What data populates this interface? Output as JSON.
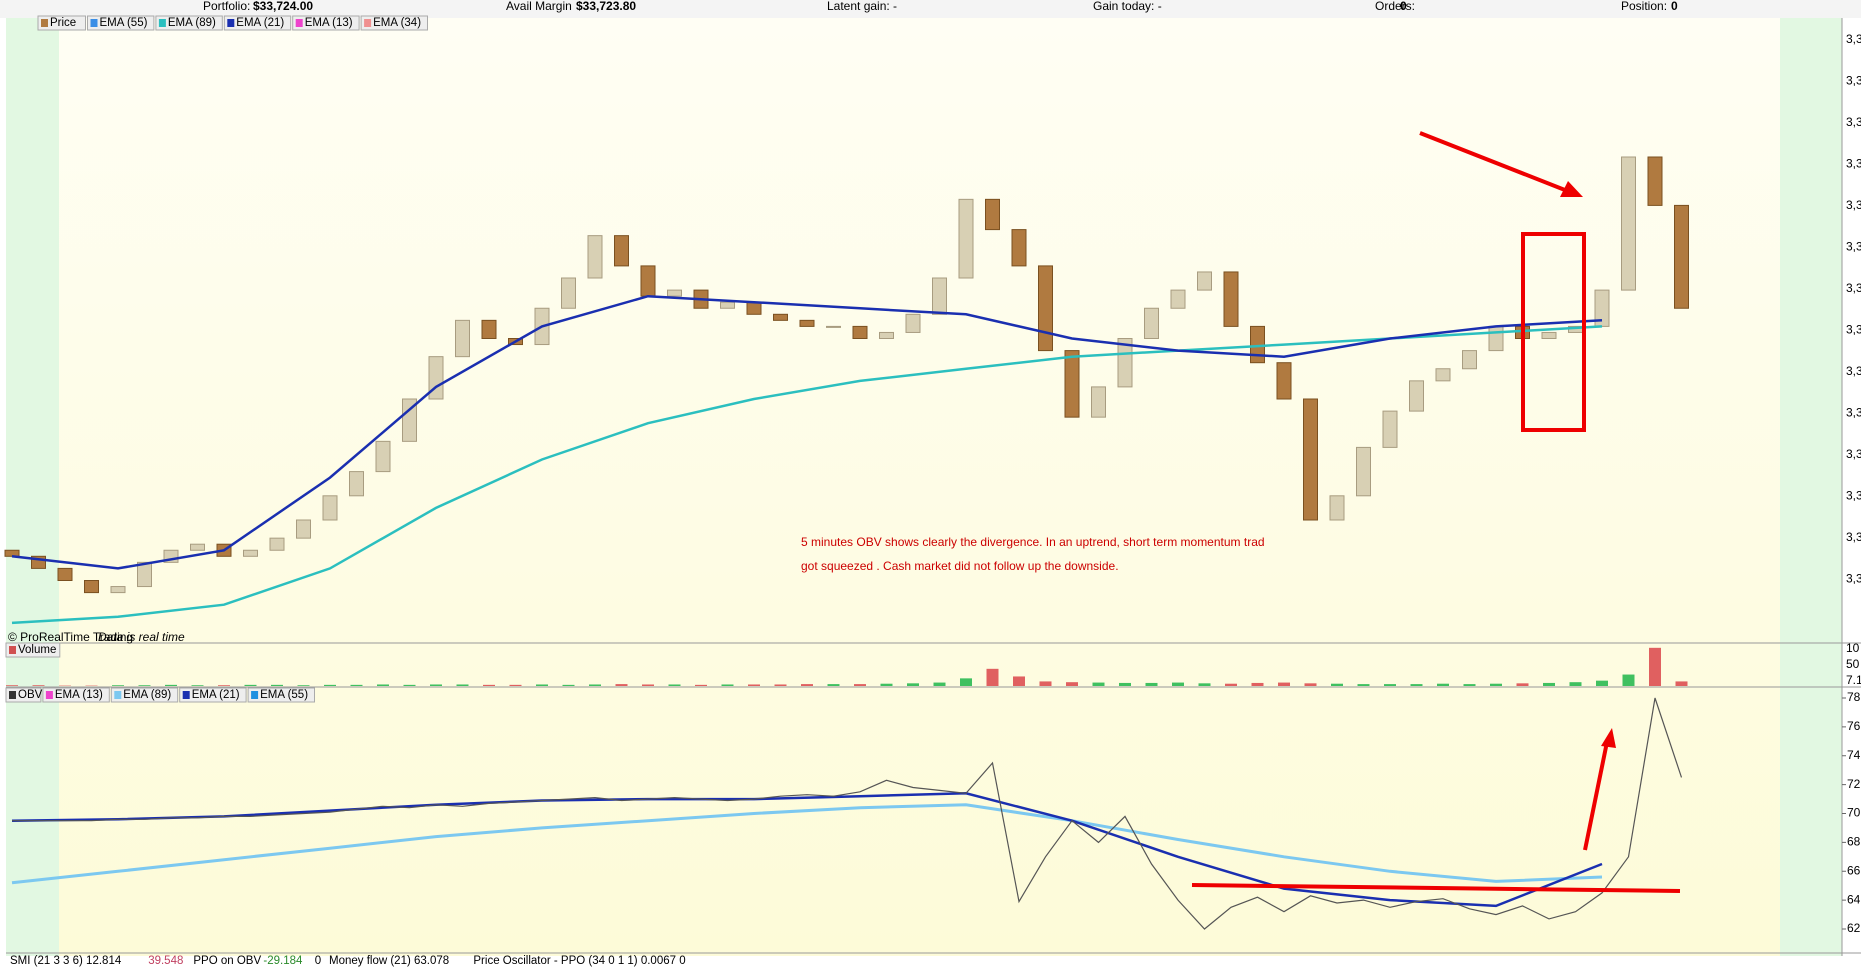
{
  "top_bar": {
    "portfolio": "Portfolio:",
    "portfolio_value": "$33,724.00",
    "avail_margin": "Avail Margin",
    "avail_margin_value": "$33,723.80",
    "latent_gain": "Latent gain: -",
    "gain_today": "Gain today: -",
    "orders": "Orders:",
    "orders_value": "0",
    "position": "Position:",
    "position_value": "0"
  },
  "price_chart": {
    "type": "candlestick",
    "legend": [
      "Price",
      "EMA (55)",
      "EMA (89)",
      "EMA (21)",
      "EMA (13)",
      "EMA (34)"
    ],
    "opens": [
      15,
      14,
      12,
      10,
      8,
      9,
      13,
      15,
      16,
      14,
      15,
      17,
      20,
      24,
      28,
      33,
      40,
      47,
      53,
      50,
      49,
      55,
      60,
      67,
      62,
      57,
      58,
      55,
      56,
      54,
      53,
      52,
      52,
      50,
      51,
      54,
      60,
      73,
      68,
      62,
      48,
      37,
      42,
      50,
      55,
      58,
      61,
      52,
      46,
      40,
      20,
      24,
      32,
      38,
      43,
      45,
      48,
      52,
      50,
      51,
      52,
      58,
      80,
      72
    ],
    "closes": [
      14,
      12,
      10,
      8,
      9,
      13,
      15,
      16,
      14,
      15,
      17,
      20,
      24,
      28,
      33,
      40,
      47,
      53,
      50,
      49,
      55,
      60,
      67,
      62,
      57,
      58,
      55,
      56,
      54,
      53,
      52,
      52,
      50,
      51,
      54,
      60,
      73,
      68,
      62,
      48,
      37,
      42,
      50,
      55,
      58,
      61,
      52,
      46,
      40,
      20,
      24,
      32,
      38,
      43,
      45,
      48,
      52,
      50,
      51,
      52,
      58,
      80,
      72,
      55
    ],
    "ema_x": [
      0,
      4,
      8,
      12,
      16,
      20,
      24,
      28,
      32,
      36,
      40,
      44,
      48,
      52,
      56,
      60
    ],
    "ema21": [
      14,
      12,
      15,
      27,
      42,
      52,
      57,
      56,
      55,
      54,
      50,
      48,
      47,
      50,
      52,
      53
    ],
    "ema89": [
      3,
      4,
      6,
      12,
      22,
      30,
      36,
      40,
      43,
      45,
      47,
      48,
      49,
      50,
      51,
      52
    ],
    "ylim": [
      0,
      100
    ],
    "yticks": [
      "3,3",
      "3,3",
      "3,3",
      "3,3",
      "3,3",
      "3,3",
      "3,3",
      "3,3",
      "3,3",
      "3,3",
      "3,3",
      "3,3",
      "3,3",
      "3,3"
    ],
    "credit": "© ProRealTime Trading",
    "credit_note": "Data is real time"
  },
  "volume_chart": {
    "type": "bar",
    "legend": "Volume",
    "ylim": [
      0,
      110
    ],
    "values": [
      2,
      2,
      1,
      1,
      2,
      2,
      3,
      2,
      2,
      3,
      3,
      2,
      3,
      3,
      4,
      3,
      4,
      4,
      3,
      3,
      4,
      3,
      4,
      5,
      4,
      4,
      3,
      4,
      4,
      4,
      5,
      5,
      5,
      6,
      7,
      9,
      20,
      45,
      25,
      12,
      10,
      9,
      8,
      8,
      9,
      7,
      6,
      8,
      9,
      7,
      6,
      5,
      5,
      5,
      6,
      5,
      6,
      7,
      8,
      10,
      14,
      30,
      100,
      12
    ],
    "ylabels": [
      "10",
      "50",
      "7.1"
    ]
  },
  "obv_chart": {
    "type": "line",
    "legend": [
      "OBV",
      "EMA (13)",
      "EMA (89)",
      "EMA (21)",
      "EMA (55)"
    ],
    "values": [
      69.5,
      69.5,
      69.5,
      69.5,
      69.6,
      69.6,
      69.7,
      69.7,
      69.8,
      69.8,
      69.9,
      70.0,
      70.1,
      70.3,
      70.5,
      70.4,
      70.6,
      70.5,
      70.7,
      70.8,
      70.9,
      71.0,
      71.1,
      70.9,
      71.0,
      71.1,
      71.0,
      70.9,
      71.0,
      71.2,
      71.3,
      71.2,
      71.5,
      72.3,
      71.8,
      71.6,
      71.4,
      73.5,
      63.9,
      67.0,
      69.5,
      68.0,
      69.8,
      66.5,
      64.0,
      62.0,
      63.5,
      64.2,
      63.2,
      64.3,
      63.8,
      64.0,
      63.5,
      63.9,
      64.1,
      63.4,
      63.0,
      63.6,
      62.7,
      63.2,
      64.5,
      67.0,
      78.0,
      72.5
    ],
    "ema_x": [
      0,
      4,
      8,
      12,
      16,
      20,
      24,
      28,
      32,
      36,
      40,
      44,
      48,
      52,
      56,
      60
    ],
    "ema21": [
      69.5,
      69.6,
      69.8,
      70.2,
      70.6,
      70.9,
      71.0,
      71.0,
      71.2,
      71.4,
      69.5,
      67.0,
      64.8,
      64.0,
      63.6,
      66.5
    ],
    "ema89": [
      65.2,
      66.0,
      66.8,
      67.6,
      68.4,
      69.0,
      69.5,
      70.0,
      70.4,
      70.6,
      69.5,
      68.2,
      67.0,
      66.0,
      65.3,
      65.6
    ],
    "ylim": [
      62,
      78
    ],
    "yticks": [
      62,
      64,
      66,
      68,
      70,
      72,
      74,
      76,
      78
    ]
  },
  "bottom_legend": [
    "SMI (21 3 3 6) 12.814",
    "39.548",
    "PPO on OBV",
    "-29.184",
    "0",
    "Money flow (21) 63.078",
    "Price Oscillator - PPO (34 0 1 1) 0.0067 0"
  ],
  "annotation": [
    "5 minutes OBV shows clearly the divergence.  In an uptrend, short term momentum trad",
    "got squeezed . Cash market did not follow up the downside."
  ]
}
